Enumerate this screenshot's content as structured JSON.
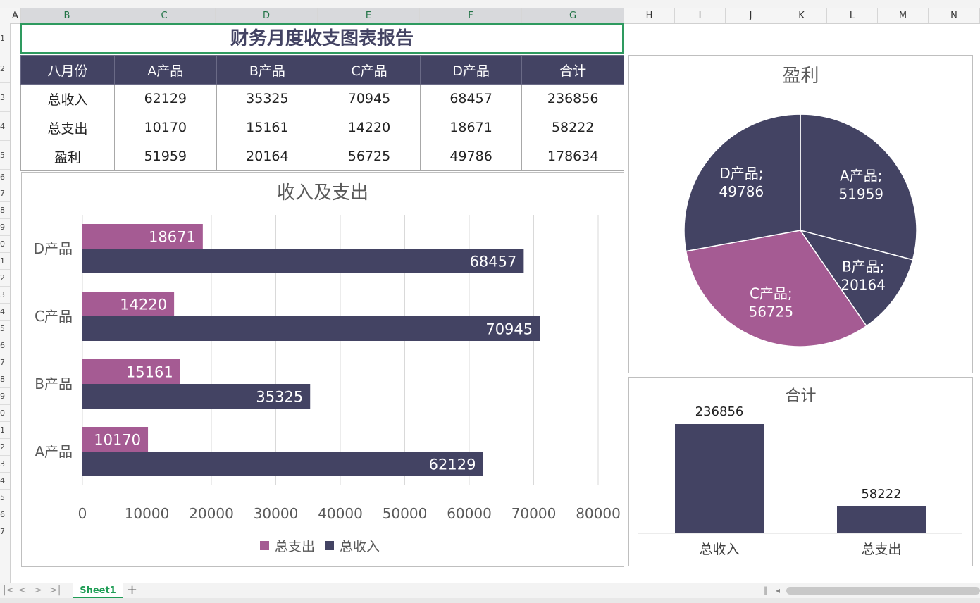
{
  "column_headers": [
    "A",
    "B",
    "C",
    "D",
    "E",
    "F",
    "G",
    "H",
    "I",
    "J",
    "K",
    "L",
    "M",
    "N"
  ],
  "row_headers": [
    "1",
    "2",
    "3",
    "4",
    "5",
    "6",
    "7",
    "8",
    "9",
    "0",
    "1",
    "2",
    "3",
    "4",
    "5",
    "6",
    "7",
    "8",
    "9",
    "0",
    "1",
    "2",
    "3",
    "4",
    "5",
    "6",
    "7"
  ],
  "title": "财务月度收支图表报告",
  "table": {
    "headers": [
      "八月份",
      "A产品",
      "B产品",
      "C产品",
      "D产品",
      "合计"
    ],
    "rows": [
      [
        "总收入",
        "62129",
        "35325",
        "70945",
        "68457",
        "236856"
      ],
      [
        "总支出",
        "10170",
        "15161",
        "14220",
        "18671",
        "58222"
      ],
      [
        "盈利",
        "51959",
        "20164",
        "56725",
        "49786",
        "178634"
      ]
    ]
  },
  "colors": {
    "dark": "#434363",
    "pink": "#a55b93",
    "accent": "#2e9a5f"
  },
  "chart_data": [
    {
      "type": "bar",
      "orientation": "horizontal",
      "title": "收入及支出",
      "categories": [
        "A产品",
        "B产品",
        "C产品",
        "D产品"
      ],
      "series": [
        {
          "name": "总支出",
          "color": "#a55b93",
          "values": [
            10170,
            15161,
            14220,
            18671
          ]
        },
        {
          "name": "总收入",
          "color": "#434363",
          "values": [
            62129,
            35325,
            70945,
            68457
          ]
        }
      ],
      "xlim": [
        0,
        80000
      ],
      "xticks": [
        "0",
        "10000",
        "20000",
        "30000",
        "40000",
        "50000",
        "60000",
        "70000",
        "80000"
      ],
      "grid": true,
      "legend": "bottom"
    },
    {
      "type": "pie",
      "title": "盈利",
      "slices": [
        {
          "label": "A产品",
          "value": 51959,
          "color": "#434363"
        },
        {
          "label": "B产品",
          "value": 20164,
          "color": "#434363"
        },
        {
          "label": "C产品",
          "value": 56725,
          "color": "#a55b93"
        },
        {
          "label": "D产品",
          "value": 49786,
          "color": "#434363"
        }
      ]
    },
    {
      "type": "bar",
      "title": "合计",
      "categories": [
        "总收入",
        "总支出"
      ],
      "values": [
        236856,
        58222
      ],
      "color": "#434363"
    }
  ],
  "sheet": {
    "tab": "Sheet1",
    "add": "+",
    "nav": [
      "|<",
      "<",
      ">",
      ">|"
    ]
  }
}
